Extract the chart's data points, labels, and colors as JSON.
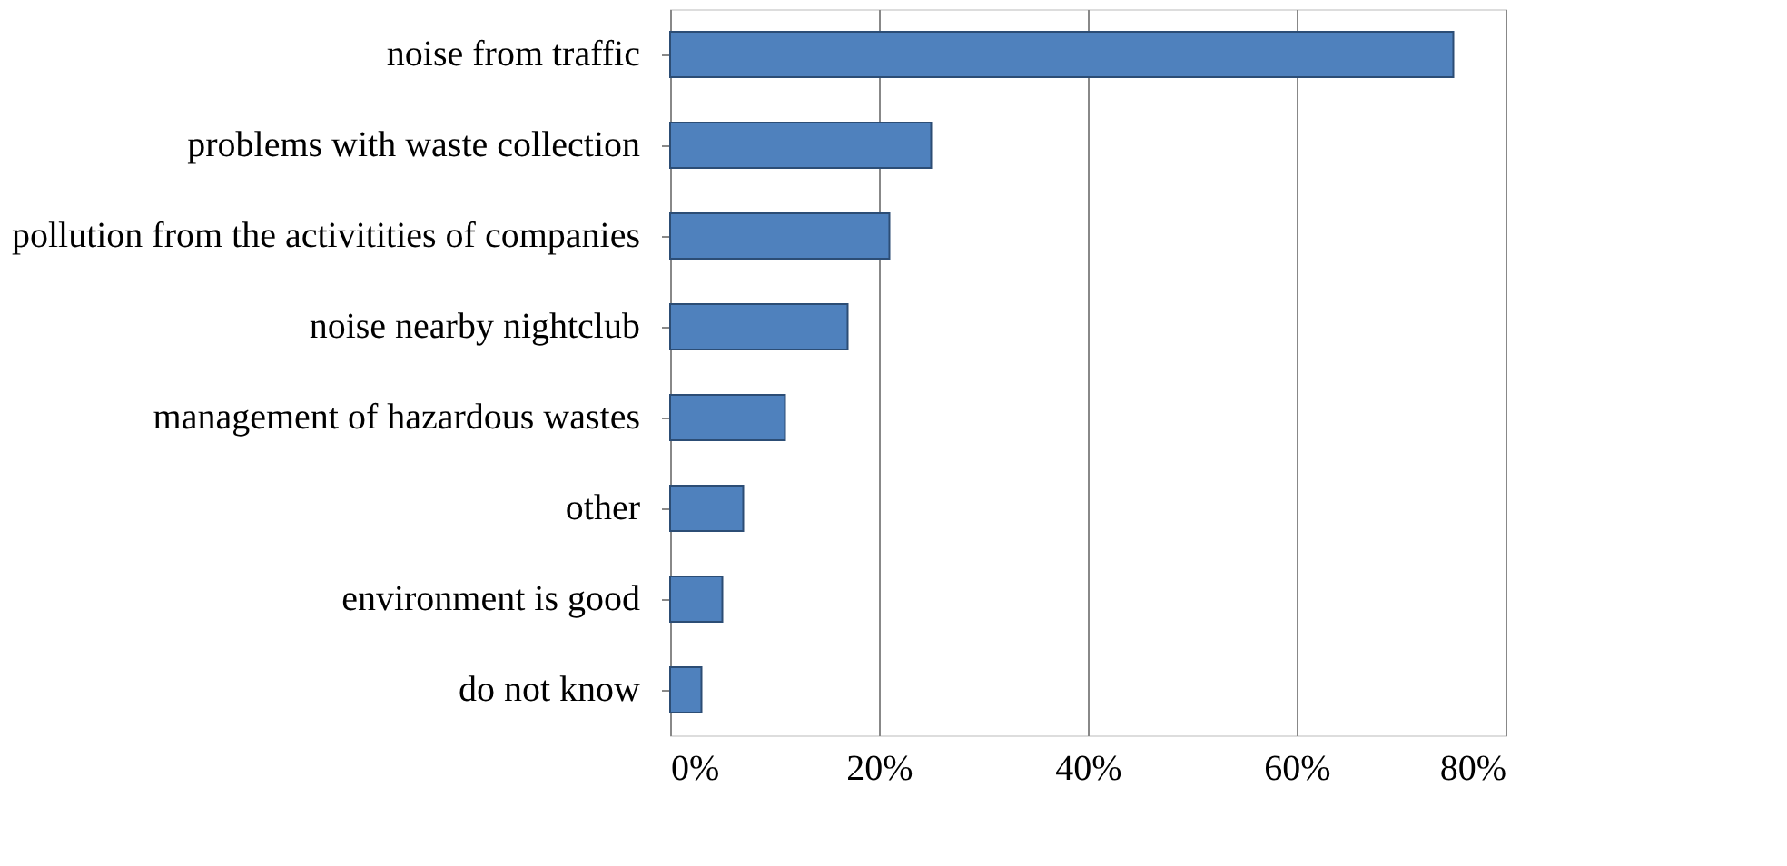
{
  "chart_data": {
    "type": "bar",
    "orientation": "horizontal",
    "categories": [
      "noise from traffic",
      "problems with waste collection",
      "pollution from the activitities of companies",
      "noise nearby nightclub",
      "management of hazardous wastes",
      "other",
      "environment is good",
      "do not know"
    ],
    "values": [
      75,
      25,
      21,
      17,
      11,
      7,
      5,
      3
    ],
    "color": "#4f81bd",
    "xlim": [
      0,
      80
    ],
    "xticks": [
      {
        "value": 0,
        "label": "0%"
      },
      {
        "value": 20,
        "label": "20%"
      },
      {
        "value": 40,
        "label": "40%"
      },
      {
        "value": 60,
        "label": "60%"
      },
      {
        "value": 80,
        "label": "80%"
      }
    ],
    "grid": "x"
  }
}
